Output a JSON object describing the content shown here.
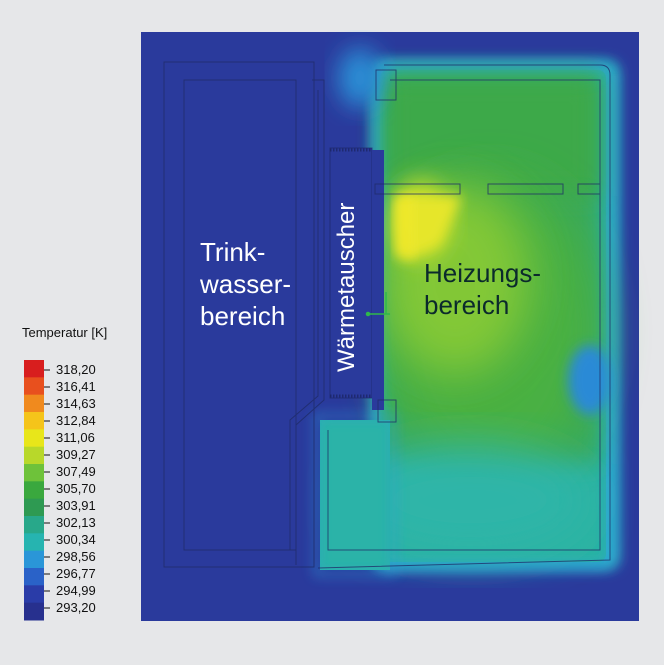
{
  "labels": {
    "trinkwasser_line1": "Trink-",
    "trinkwasser_line2": "wasser-",
    "trinkwasser_line3": "bereich",
    "waermetauscher": "Wärmetauscher",
    "heizung_line1": "Heizungs-",
    "heizung_line2": "bereich"
  },
  "legend": {
    "title": "Temperatur [K]",
    "ticks": [
      "318,20",
      "316,41",
      "314,63",
      "312,84",
      "311,06",
      "309,27",
      "307,49",
      "305,70",
      "303,91",
      "302,13",
      "300,34",
      "298,56",
      "296,77",
      "294,99",
      "293,20"
    ],
    "colors": [
      "#d81e1e",
      "#e8501e",
      "#f08a1e",
      "#f5c41a",
      "#e8e61a",
      "#b8d82a",
      "#6ec23a",
      "#3aa83e",
      "#2e9a52",
      "#28a88a",
      "#26b4b0",
      "#2a96d8",
      "#2a62c8",
      "#2a3ca8",
      "#27308e"
    ]
  },
  "colors": {
    "cold": "#2a3a9c",
    "warm_green": "#3aa847",
    "hot_yellow": "#f2ee2a",
    "background": "#e6e7e9"
  }
}
